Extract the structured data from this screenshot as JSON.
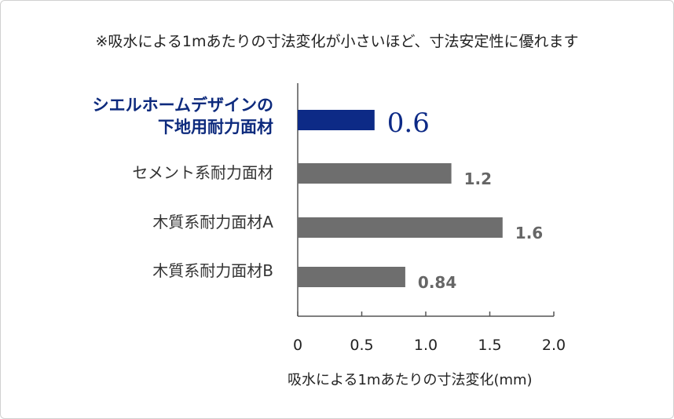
{
  "note": "※吸水による1mあたりの寸法変化が小さいほど、寸法安定性に優れます",
  "chart_data": {
    "type": "bar",
    "orientation": "horizontal",
    "categories": [
      [
        "シエルホームデザインの",
        "下地用耐力面材"
      ],
      [
        "セメント系耐力面材"
      ],
      [
        "木質系耐力面材A"
      ],
      [
        "木質系耐力面材B"
      ]
    ],
    "values": [
      0.6,
      1.2,
      1.6,
      0.84
    ],
    "value_labels": [
      "0.6",
      "1.2",
      "1.6",
      "0.84"
    ],
    "colors": [
      "#0d2a86",
      "#6e6e6e",
      "#6e6e6e",
      "#6e6e6e"
    ],
    "highlight_label_color": "#0d2a7d",
    "xlabel": "吸水による1mあたりの寸法変化(mm)",
    "xlim": [
      0,
      2.0
    ],
    "xticks": [
      "0",
      "0.5",
      "1.0",
      "1.5",
      "2.0"
    ],
    "grid": false,
    "legend": "none"
  }
}
